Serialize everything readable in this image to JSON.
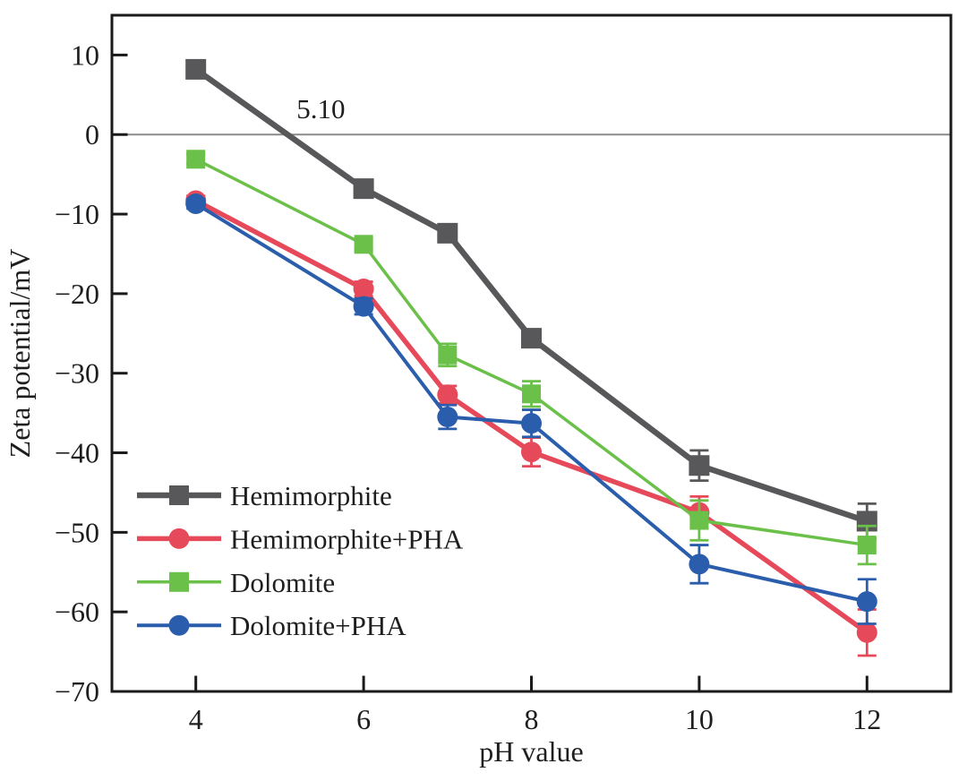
{
  "figure": {
    "background": "#ffffff",
    "text_color": "#1e1e1e",
    "axis_color": "#1a1a1a",
    "zero_line_color": "#8a8a8a"
  },
  "chart_data": {
    "type": "line",
    "title": "",
    "xlabel": "pH value",
    "ylabel": "Zeta potential/mV",
    "xlim": [
      3,
      13
    ],
    "ylim": [
      -70,
      15
    ],
    "xticks": [
      4,
      6,
      8,
      10,
      12
    ],
    "yticks": [
      10,
      0,
      -10,
      -20,
      -30,
      -40,
      -50,
      -60,
      -70
    ],
    "grid": false,
    "zero_line": {
      "value": 0,
      "color": "#8a8a8a"
    },
    "annotation": {
      "text": "5.10",
      "x": 5.49,
      "y": 3.3
    },
    "x": [
      4,
      6,
      7,
      8,
      10,
      12
    ],
    "series": [
      {
        "name": "Hemimorphite",
        "color": "#58585a",
        "marker": "square",
        "marker_size": 23,
        "line_width": 6.5,
        "values": [
          8.2,
          -6.8,
          -12.4,
          -25.6,
          -41.6,
          -48.6
        ],
        "errors": [
          0.9,
          0.6,
          0.9,
          1.1,
          1.9,
          2.2
        ]
      },
      {
        "name": "Hemimorphite+PHA",
        "color": "#e64a5a",
        "marker": "circle",
        "marker_size": 23,
        "line_width": 5.5,
        "values": [
          -8.3,
          -19.4,
          -32.7,
          -39.9,
          -47.5,
          -62.6
        ],
        "errors": [
          0.6,
          0.9,
          1.1,
          1.8,
          2.0,
          2.9
        ]
      },
      {
        "name": "Dolomite",
        "color": "#6bc04a",
        "marker": "square",
        "marker_size": 21,
        "line_width": 3.5,
        "values": [
          -3.1,
          -13.8,
          -27.7,
          -32.6,
          -48.5,
          -51.6
        ],
        "errors": [
          0.6,
          0.7,
          1.4,
          1.6,
          2.5,
          2.4
        ]
      },
      {
        "name": "Dolomite+PHA",
        "color": "#2a5dab",
        "marker": "circle",
        "marker_size": 23,
        "line_width": 4,
        "values": [
          -8.7,
          -21.6,
          -35.5,
          -36.3,
          -54.0,
          -58.7
        ],
        "errors": [
          0.6,
          1.0,
          1.5,
          1.7,
          2.4,
          2.8
        ]
      }
    ],
    "legend": {
      "position": "inside bottom-left",
      "items": [
        "Hemimorphite",
        "Hemimorphite+PHA",
        "Dolomite",
        "Dolomite+PHA"
      ]
    }
  }
}
